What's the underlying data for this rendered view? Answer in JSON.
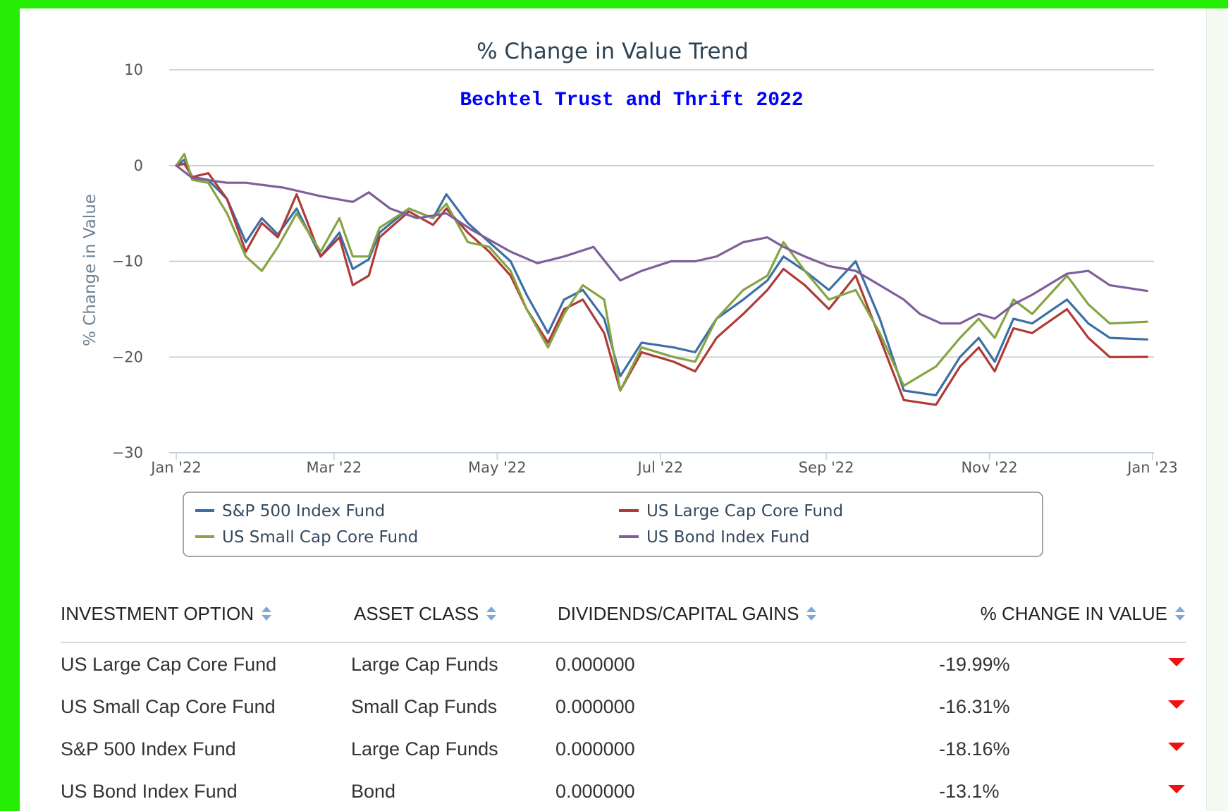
{
  "colors": {
    "sp500": "#3c6fa6",
    "large_cap": "#b03a36",
    "small_cap": "#86a443",
    "bond": "#7e5f9a",
    "down_arrow": "#ee1111"
  },
  "chart_data": {
    "type": "line",
    "title": "% Change in Value Trend",
    "subtitle": "Bechtel Trust and Thrift 2022",
    "ylabel": "% Change in Value",
    "xlabel": "",
    "ylim": [
      -30,
      10
    ],
    "yticks": [
      10,
      0,
      -10,
      -20,
      -30
    ],
    "ytick_labels": [
      "10",
      "0",
      "−10",
      "−20",
      "−30"
    ],
    "xlim": [
      "2022-01-01",
      "2023-01-01"
    ],
    "xticks": [
      "2022-01-01",
      "2022-03-01",
      "2022-05-01",
      "2022-07-01",
      "2022-09-01",
      "2022-11-01",
      "2023-01-01"
    ],
    "xtick_labels": [
      "Jan '22",
      "Mar '22",
      "May '22",
      "Jul '22",
      "Sep '22",
      "Nov '22",
      "Jan '23"
    ],
    "grid": true,
    "legend_position": "bottom",
    "series": [
      {
        "name": "S&P 500 Index Fund",
        "color": "#3c6fa6",
        "points": [
          [
            "2022-01-01",
            0
          ],
          [
            "2022-01-04",
            0.6
          ],
          [
            "2022-01-07",
            -1.2
          ],
          [
            "2022-01-13",
            -1.5
          ],
          [
            "2022-01-20",
            -3.5
          ],
          [
            "2022-01-27",
            -8
          ],
          [
            "2022-02-02",
            -5.5
          ],
          [
            "2022-02-08",
            -7.2
          ],
          [
            "2022-02-15",
            -4.5
          ],
          [
            "2022-02-24",
            -9.5
          ],
          [
            "2022-03-03",
            -7
          ],
          [
            "2022-03-08",
            -10.8
          ],
          [
            "2022-03-14",
            -9.8
          ],
          [
            "2022-03-18",
            -7
          ],
          [
            "2022-03-29",
            -4.5
          ],
          [
            "2022-04-07",
            -5.5
          ],
          [
            "2022-04-12",
            -3
          ],
          [
            "2022-04-20",
            -6
          ],
          [
            "2022-04-28",
            -8
          ],
          [
            "2022-05-06",
            -10
          ],
          [
            "2022-05-12",
            -13.5
          ],
          [
            "2022-05-20",
            -17.5
          ],
          [
            "2022-05-26",
            -14
          ],
          [
            "2022-06-02",
            -13
          ],
          [
            "2022-06-10",
            -16
          ],
          [
            "2022-06-16",
            -22
          ],
          [
            "2022-06-24",
            -18.5
          ],
          [
            "2022-07-06",
            -19
          ],
          [
            "2022-07-14",
            -19.5
          ],
          [
            "2022-07-22",
            -16
          ],
          [
            "2022-08-01",
            -14
          ],
          [
            "2022-08-10",
            -12
          ],
          [
            "2022-08-16",
            -9.5
          ],
          [
            "2022-08-24",
            -11
          ],
          [
            "2022-09-02",
            -13
          ],
          [
            "2022-09-12",
            -10
          ],
          [
            "2022-09-21",
            -16
          ],
          [
            "2022-09-30",
            -23.5
          ],
          [
            "2022-10-12",
            -24
          ],
          [
            "2022-10-21",
            -20
          ],
          [
            "2022-10-28",
            -18
          ],
          [
            "2022-11-03",
            -20.5
          ],
          [
            "2022-11-10",
            -16
          ],
          [
            "2022-11-17",
            -16.5
          ],
          [
            "2022-11-30",
            -14
          ],
          [
            "2022-12-08",
            -16.5
          ],
          [
            "2022-12-16",
            -18
          ],
          [
            "2022-12-30",
            -18.16
          ]
        ]
      },
      {
        "name": "US Large Cap Core Fund",
        "color": "#b03a36",
        "points": [
          [
            "2022-01-01",
            0
          ],
          [
            "2022-01-04",
            0.2
          ],
          [
            "2022-01-07",
            -1.2
          ],
          [
            "2022-01-13",
            -0.8
          ],
          [
            "2022-01-20",
            -3.5
          ],
          [
            "2022-01-27",
            -9
          ],
          [
            "2022-02-02",
            -6
          ],
          [
            "2022-02-08",
            -7.5
          ],
          [
            "2022-02-15",
            -3
          ],
          [
            "2022-02-24",
            -9.5
          ],
          [
            "2022-03-03",
            -7.5
          ],
          [
            "2022-03-08",
            -12.5
          ],
          [
            "2022-03-14",
            -11.5
          ],
          [
            "2022-03-18",
            -7.5
          ],
          [
            "2022-03-29",
            -4.8
          ],
          [
            "2022-04-07",
            -6.2
          ],
          [
            "2022-04-12",
            -4.5
          ],
          [
            "2022-04-20",
            -7
          ],
          [
            "2022-04-28",
            -9
          ],
          [
            "2022-05-06",
            -11.5
          ],
          [
            "2022-05-12",
            -15
          ],
          [
            "2022-05-20",
            -18.5
          ],
          [
            "2022-05-26",
            -15
          ],
          [
            "2022-06-02",
            -14
          ],
          [
            "2022-06-10",
            -17.5
          ],
          [
            "2022-06-16",
            -23.5
          ],
          [
            "2022-06-24",
            -19.5
          ],
          [
            "2022-07-06",
            -20.5
          ],
          [
            "2022-07-14",
            -21.5
          ],
          [
            "2022-07-22",
            -18
          ],
          [
            "2022-08-01",
            -15.5
          ],
          [
            "2022-08-10",
            -13
          ],
          [
            "2022-08-16",
            -10.8
          ],
          [
            "2022-08-24",
            -12.5
          ],
          [
            "2022-09-02",
            -15
          ],
          [
            "2022-09-12",
            -11.5
          ],
          [
            "2022-09-21",
            -18
          ],
          [
            "2022-09-30",
            -24.5
          ],
          [
            "2022-10-12",
            -25
          ],
          [
            "2022-10-21",
            -21
          ],
          [
            "2022-10-28",
            -19
          ],
          [
            "2022-11-03",
            -21.5
          ],
          [
            "2022-11-10",
            -17
          ],
          [
            "2022-11-17",
            -17.5
          ],
          [
            "2022-11-30",
            -15
          ],
          [
            "2022-12-08",
            -18
          ],
          [
            "2022-12-16",
            -20
          ],
          [
            "2022-12-30",
            -19.99
          ]
        ]
      },
      {
        "name": "US Small Cap Core Fund",
        "color": "#86a443",
        "points": [
          [
            "2022-01-01",
            0
          ],
          [
            "2022-01-04",
            1.2
          ],
          [
            "2022-01-07",
            -1.5
          ],
          [
            "2022-01-13",
            -1.8
          ],
          [
            "2022-01-20",
            -5
          ],
          [
            "2022-01-27",
            -9.5
          ],
          [
            "2022-02-02",
            -11
          ],
          [
            "2022-02-08",
            -8.5
          ],
          [
            "2022-02-15",
            -5
          ],
          [
            "2022-02-24",
            -9
          ],
          [
            "2022-03-03",
            -5.5
          ],
          [
            "2022-03-08",
            -9.5
          ],
          [
            "2022-03-14",
            -9.5
          ],
          [
            "2022-03-18",
            -6.5
          ],
          [
            "2022-03-29",
            -4.5
          ],
          [
            "2022-04-07",
            -5.5
          ],
          [
            "2022-04-12",
            -4
          ],
          [
            "2022-04-20",
            -8
          ],
          [
            "2022-04-28",
            -8.5
          ],
          [
            "2022-05-06",
            -11
          ],
          [
            "2022-05-12",
            -15
          ],
          [
            "2022-05-20",
            -19
          ],
          [
            "2022-05-26",
            -15.5
          ],
          [
            "2022-06-02",
            -12.5
          ],
          [
            "2022-06-10",
            -14
          ],
          [
            "2022-06-16",
            -23.5
          ],
          [
            "2022-06-24",
            -19
          ],
          [
            "2022-07-06",
            -20
          ],
          [
            "2022-07-14",
            -20.5
          ],
          [
            "2022-07-22",
            -16
          ],
          [
            "2022-08-01",
            -13
          ],
          [
            "2022-08-10",
            -11.5
          ],
          [
            "2022-08-16",
            -8
          ],
          [
            "2022-08-24",
            -11
          ],
          [
            "2022-09-02",
            -14
          ],
          [
            "2022-09-12",
            -13
          ],
          [
            "2022-09-21",
            -17.5
          ],
          [
            "2022-09-30",
            -23
          ],
          [
            "2022-10-12",
            -21
          ],
          [
            "2022-10-21",
            -18
          ],
          [
            "2022-10-28",
            -16
          ],
          [
            "2022-11-03",
            -18
          ],
          [
            "2022-11-10",
            -14
          ],
          [
            "2022-11-17",
            -15.5
          ],
          [
            "2022-11-30",
            -11.5
          ],
          [
            "2022-12-08",
            -14.5
          ],
          [
            "2022-12-16",
            -16.5
          ],
          [
            "2022-12-30",
            -16.31
          ]
        ]
      },
      {
        "name": "US Bond Index Fund",
        "color": "#7e5f9a",
        "points": [
          [
            "2022-01-01",
            0
          ],
          [
            "2022-01-07",
            -1.3
          ],
          [
            "2022-01-20",
            -1.8
          ],
          [
            "2022-01-27",
            -1.8
          ],
          [
            "2022-02-10",
            -2.3
          ],
          [
            "2022-02-24",
            -3.2
          ],
          [
            "2022-03-08",
            -3.8
          ],
          [
            "2022-03-14",
            -2.8
          ],
          [
            "2022-03-22",
            -4.5
          ],
          [
            "2022-04-01",
            -5.5
          ],
          [
            "2022-04-12",
            -5
          ],
          [
            "2022-04-22",
            -6.8
          ],
          [
            "2022-05-06",
            -9
          ],
          [
            "2022-05-16",
            -10.2
          ],
          [
            "2022-05-26",
            -9.5
          ],
          [
            "2022-06-06",
            -8.5
          ],
          [
            "2022-06-16",
            -12
          ],
          [
            "2022-06-24",
            -11
          ],
          [
            "2022-07-05",
            -10
          ],
          [
            "2022-07-14",
            -10
          ],
          [
            "2022-07-22",
            -9.5
          ],
          [
            "2022-08-01",
            -8
          ],
          [
            "2022-08-10",
            -7.5
          ],
          [
            "2022-08-16",
            -8.5
          ],
          [
            "2022-08-24",
            -9.5
          ],
          [
            "2022-09-02",
            -10.5
          ],
          [
            "2022-09-12",
            -11
          ],
          [
            "2022-09-21",
            -12.5
          ],
          [
            "2022-09-30",
            -14
          ],
          [
            "2022-10-06",
            -15.5
          ],
          [
            "2022-10-14",
            -16.5
          ],
          [
            "2022-10-21",
            -16.5
          ],
          [
            "2022-10-28",
            -15.5
          ],
          [
            "2022-11-03",
            -16
          ],
          [
            "2022-11-10",
            -14.5
          ],
          [
            "2022-11-17",
            -13.5
          ],
          [
            "2022-11-30",
            -11.3
          ],
          [
            "2022-12-08",
            -11
          ],
          [
            "2022-12-16",
            -12.5
          ],
          [
            "2022-12-30",
            -13.1
          ]
        ]
      }
    ]
  },
  "table": {
    "headers": [
      "INVESTMENT OPTION",
      "ASSET CLASS",
      "DIVIDENDS/CAPITAL GAINS",
      "% CHANGE IN VALUE"
    ],
    "rows": [
      {
        "option": "US Large Cap Core Fund",
        "asset_class": "Large Cap Funds",
        "dividends": "0.000000",
        "change": "-19.99%"
      },
      {
        "option": "US Small Cap Core Fund",
        "asset_class": "Small Cap Funds",
        "dividends": "0.000000",
        "change": "-16.31%"
      },
      {
        "option": "S&P 500 Index Fund",
        "asset_class": "Large Cap Funds",
        "dividends": "0.000000",
        "change": "-18.16%"
      },
      {
        "option": "US Bond Index Fund",
        "asset_class": "Bond",
        "dividends": "0.000000",
        "change": "-13.1%"
      }
    ]
  }
}
